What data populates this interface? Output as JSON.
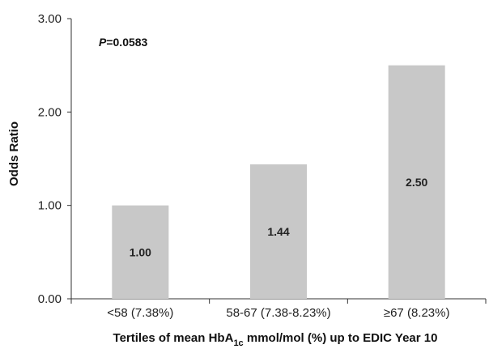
{
  "chart_data": {
    "type": "bar",
    "categories": [
      "<58 (7.38%)",
      "58-67 (7.38-8.23%)",
      "≥67 (8.23%)"
    ],
    "values": [
      1.0,
      1.44,
      2.5
    ],
    "data_labels": [
      "1.00",
      "1.44",
      "2.50"
    ],
    "ylim": [
      0,
      3
    ],
    "yticks": [
      0,
      1,
      2,
      3
    ],
    "ytick_labels": [
      "0.00",
      "1.00",
      "2.00",
      "3.00"
    ],
    "ylabel": "Odds Ratio",
    "xlabel": {
      "before_sub": "Tertiles of mean HbA",
      "sub": "1c",
      "after_sub": " mmol/mol (%) up to EDIC Year 10"
    },
    "annotation": {
      "p_letter": "P",
      "p_value": "=0.0583"
    },
    "bar_color": "#c8c8c8",
    "grid": false,
    "legend": "none"
  }
}
